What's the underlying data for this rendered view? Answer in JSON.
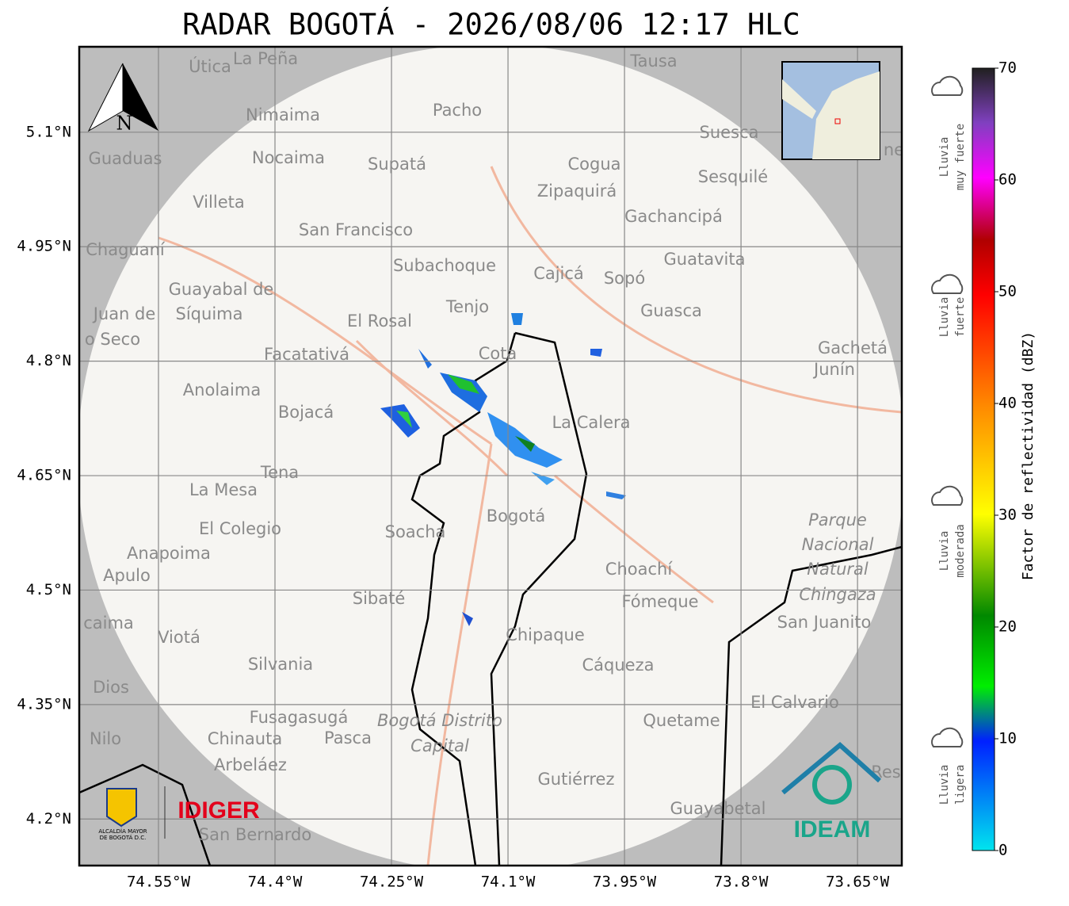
{
  "header": {
    "title": "RADAR BOGOTÁ - 2026/08/06 12:17 HLC"
  },
  "map": {
    "extent": {
      "lon": [
        -74.652,
        -73.593
      ],
      "lat": [
        4.139,
        5.212
      ]
    },
    "lon_ticks": [
      {
        "value": -74.55,
        "label": "74.55°W"
      },
      {
        "value": -74.4,
        "label": "74.4°W"
      },
      {
        "value": -74.25,
        "label": "74.25°W"
      },
      {
        "value": -74.1,
        "label": "74.1°W"
      },
      {
        "value": -73.95,
        "label": "73.95°W"
      },
      {
        "value": -73.8,
        "label": "73.8°W"
      },
      {
        "value": -73.65,
        "label": "73.65°W"
      }
    ],
    "lat_ticks": [
      {
        "value": 5.1,
        "label": "5.1°N"
      },
      {
        "value": 4.95,
        "label": "4.95°N"
      },
      {
        "value": 4.8,
        "label": "4.8°N"
      },
      {
        "value": 4.65,
        "label": "4.65°N"
      },
      {
        "value": 4.5,
        "label": "4.5°N"
      },
      {
        "value": 4.35,
        "label": "4.35°N"
      },
      {
        "value": 4.2,
        "label": "4.2°N"
      }
    ],
    "north": "N",
    "places": [
      "Útica",
      "La Peña",
      "Tausa",
      "Pacho",
      "Nimaima",
      "Suesca",
      "Guaduas",
      "Nocaima",
      "Supatá",
      "Cogua",
      "Sesquilé",
      "Zipaquirá",
      "Villeta",
      "Gachancipá",
      "San Francisco",
      "Chaguaní",
      "Guatavita",
      "Subachoque",
      "Cajicá",
      "Sopó",
      "Guayabal de",
      "Síquima",
      "Tenjo",
      "Guasca",
      "Juan de",
      "El Rosal",
      "o Seco",
      "Gachetá",
      "Facatativá",
      "Cota",
      "Junín",
      "Anolaima",
      "La Calera",
      "Bojacá",
      "Tena",
      "La Mesa",
      "Parque",
      "Bogotá",
      "El Colegio",
      "Soacha",
      "Nacional",
      "Anapoima",
      "Natural",
      "Choachí",
      "Apulo",
      "Chingaza",
      "Sibaté",
      "Fómeque",
      "San Juanito",
      "caima",
      "Viotá",
      "Chipaque",
      "Silvania",
      "Cáqueza",
      "Dios",
      "El Calvario",
      "Fusagasugá",
      "Bogotá Distrito",
      "Quetame",
      "Nilo",
      "Chinauta",
      "Pasca",
      "Capital",
      "Arbeláez",
      "Gutiérrez",
      "Res",
      "Guayabetal",
      "San Bernardo",
      "ne"
    ]
  },
  "logos": {
    "alcaldia": [
      "ALCALDÍA MAYOR",
      "DE BOGOTÁ D.C."
    ],
    "idiger": "IDIGER",
    "ideam": "IDEAM"
  },
  "colorbar": {
    "label": "Factor de reflectividad (dBZ)",
    "range": [
      0,
      70
    ],
    "ticks": [
      0,
      10,
      20,
      30,
      40,
      50,
      60,
      70
    ]
  },
  "rain_legend": [
    [
      "Lluvia",
      "muy fuerte"
    ],
    [
      "Lluvia",
      "fuerte"
    ],
    [
      "Lluvia",
      "moderada"
    ],
    [
      "Lluvia",
      "ligera"
    ]
  ]
}
